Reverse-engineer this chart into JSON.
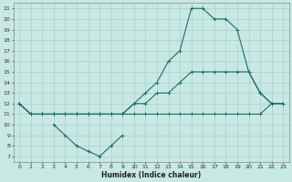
{
  "xlabel": "Humidex (Indice chaleur)",
  "bg_color": "#c8e8e4",
  "line_color": "#1a6e68",
  "grid_color": "#a8d0cc",
  "xlim": [
    -0.5,
    23.5
  ],
  "ylim": [
    6.5,
    21.5
  ],
  "xticks": [
    0,
    1,
    2,
    3,
    4,
    5,
    6,
    7,
    8,
    9,
    10,
    11,
    12,
    13,
    14,
    15,
    16,
    17,
    18,
    19,
    20,
    21,
    22,
    23
  ],
  "yticks": [
    7,
    8,
    9,
    10,
    11,
    12,
    13,
    14,
    15,
    16,
    17,
    18,
    19,
    20,
    21
  ],
  "line1_x": [
    0,
    1,
    2,
    3,
    4,
    5,
    6,
    7,
    8,
    9,
    10,
    11,
    12,
    13,
    14,
    15,
    16,
    17,
    18,
    19,
    20,
    21,
    22,
    23
  ],
  "line1_y": [
    12,
    11,
    11,
    11,
    11,
    11,
    11,
    11,
    11,
    11,
    11,
    11,
    11,
    11,
    11,
    11,
    11,
    11,
    11,
    11,
    11,
    11,
    12,
    12
  ],
  "line2_x": [
    0,
    1,
    2,
    3,
    4,
    5,
    6,
    7,
    8,
    9,
    10,
    11,
    12,
    13,
    14,
    15,
    16,
    17,
    18,
    19,
    20,
    21,
    22,
    23
  ],
  "line2_y": [
    12,
    11,
    11,
    11,
    11,
    11,
    11,
    11,
    11,
    11,
    12,
    12,
    13,
    13,
    14,
    15,
    15,
    15,
    15,
    15,
    15,
    13,
    12,
    12
  ],
  "line3_x": [
    0,
    1,
    2,
    3,
    4,
    5,
    6,
    7,
    8,
    9,
    10,
    11,
    12,
    13,
    14,
    15,
    16,
    17,
    18,
    19,
    20,
    21,
    22,
    23
  ],
  "line3_y": [
    12,
    11,
    11,
    11,
    11,
    11,
    11,
    11,
    11,
    11,
    12,
    13,
    14,
    16,
    17,
    21,
    21,
    20,
    20,
    19,
    15,
    13,
    12,
    12
  ],
  "line4_x": [
    3,
    4,
    5,
    6,
    7,
    8,
    9
  ],
  "line4_y": [
    10,
    9,
    8,
    7.5,
    7,
    8,
    9
  ]
}
